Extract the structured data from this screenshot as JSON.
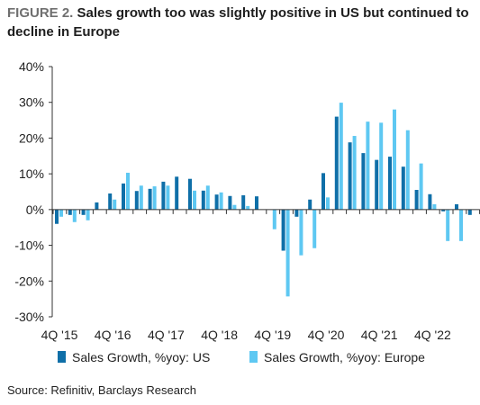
{
  "figure": {
    "label": "FIGURE 2.",
    "title": "Sales growth too was slightly positive in US but continued to decline in Europe",
    "source": "Source: Refinitiv, Barclays Research"
  },
  "colors": {
    "us": "#0f6fa8",
    "europe": "#5ec8f2",
    "axis": "#333333"
  },
  "chart_data": {
    "type": "bar",
    "title": "",
    "xlabel": "",
    "ylabel": "",
    "ylim": [
      -30,
      40
    ],
    "yticks": [
      -30,
      -20,
      -10,
      0,
      10,
      20,
      30,
      40
    ],
    "ytick_labels": [
      "-30%",
      "-20%",
      "-10%",
      "0%",
      "10%",
      "20%",
      "30%",
      "40%"
    ],
    "grid": false,
    "legend_position": "bottom",
    "categories": [
      "4Q '15",
      "1Q '16",
      "2Q '16",
      "3Q '16",
      "4Q '16",
      "1Q '17",
      "2Q '17",
      "3Q '17",
      "4Q '17",
      "1Q '18",
      "2Q '18",
      "3Q '18",
      "4Q '18",
      "1Q '19",
      "2Q '19",
      "3Q '19",
      "4Q '19",
      "1Q '20",
      "2Q '20",
      "3Q '20",
      "4Q '20",
      "1Q '21",
      "2Q '21",
      "3Q '21",
      "4Q '21",
      "1Q '22",
      "2Q '22",
      "3Q '22",
      "4Q '22",
      "1Q '23",
      "2Q '23",
      "3Q '23"
    ],
    "x_tick_labels": [
      "4Q '15",
      "4Q '16",
      "4Q '17",
      "4Q '18",
      "4Q '19",
      "4Q '20",
      "4Q '21",
      "4Q '22"
    ],
    "series": [
      {
        "name": "Sales Growth, %yoy: US",
        "values": [
          -4,
          -1.5,
          -1.5,
          2,
          4.5,
          7.3,
          5.2,
          5.8,
          7.8,
          9.2,
          8.6,
          5.3,
          4.2,
          3.8,
          4,
          3.7,
          null,
          -11.5,
          -2,
          2.8,
          10.2,
          26,
          18.8,
          15.8,
          13.9,
          14.8,
          12,
          5.5,
          4.3,
          -0.5,
          1.5,
          -1.5
        ]
      },
      {
        "name": "Sales Growth, %yoy: Europe",
        "values": [
          -2,
          -3.5,
          -3,
          null,
          2.8,
          10.3,
          6.7,
          6.5,
          6.7,
          null,
          5.3,
          6.7,
          4.8,
          1.3,
          1,
          null,
          -5.5,
          -24.3,
          -12.8,
          -10.8,
          3.4,
          29.9,
          20.6,
          24.6,
          24.3,
          28,
          22.2,
          12.9,
          1.5,
          -8.8,
          -8.8,
          null
        ]
      }
    ]
  }
}
